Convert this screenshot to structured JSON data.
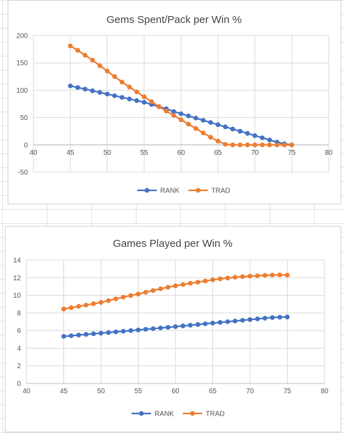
{
  "chart_data": [
    {
      "type": "line",
      "title": "Gems Spent/Pack per Win %",
      "xlabel": "",
      "ylabel": "",
      "xlim": [
        40,
        80
      ],
      "ylim": [
        -50,
        200
      ],
      "x_ticks": [
        "40",
        "45",
        "50",
        "55",
        "60",
        "65",
        "70",
        "75",
        "80"
      ],
      "y_ticks": [
        "200",
        "150",
        "100",
        "50",
        "0",
        "-50"
      ],
      "grid": true,
      "legend_position": "bottom",
      "x": [
        45,
        46,
        47,
        48,
        49,
        50,
        51,
        52,
        53,
        54,
        55,
        56,
        57,
        58,
        59,
        60,
        61,
        62,
        63,
        64,
        65,
        66,
        67,
        68,
        69,
        70,
        71,
        72,
        73,
        74,
        75
      ],
      "series": [
        {
          "name": "RANK",
          "color": "#4472c4",
          "values": [
            108,
            105,
            102,
            99,
            96,
            93,
            90,
            87,
            84,
            81,
            78,
            74,
            70,
            66,
            61,
            57,
            53,
            49,
            45,
            41,
            37,
            33,
            29,
            25,
            21,
            17,
            13,
            9,
            5,
            2,
            0
          ]
        },
        {
          "name": "TRAD",
          "color": "#ed7d31",
          "values": [
            181,
            173,
            164,
            155,
            145,
            135,
            125,
            115,
            106,
            97,
            88,
            79,
            70,
            62,
            54,
            46,
            38,
            30,
            22,
            14,
            7,
            1,
            0,
            0,
            0,
            0,
            0,
            0,
            0,
            0,
            0
          ]
        }
      ]
    },
    {
      "type": "line",
      "title": "Games Played per Win %",
      "xlabel": "",
      "ylabel": "",
      "xlim": [
        40,
        80
      ],
      "ylim": [
        0,
        14
      ],
      "x_ticks": [
        "40",
        "45",
        "50",
        "55",
        "60",
        "65",
        "70",
        "75",
        "80"
      ],
      "y_ticks": [
        "14",
        "12",
        "10",
        "8",
        "6",
        "4",
        "2",
        "0"
      ],
      "grid": true,
      "legend_position": "bottom",
      "x": [
        45,
        46,
        47,
        48,
        49,
        50,
        51,
        52,
        53,
        54,
        55,
        56,
        57,
        58,
        59,
        60,
        61,
        62,
        63,
        64,
        65,
        66,
        67,
        68,
        69,
        70,
        71,
        72,
        73,
        74,
        75
      ],
      "series": [
        {
          "name": "RANK",
          "color": "#4472c4",
          "values": [
            5.35,
            5.42,
            5.5,
            5.57,
            5.64,
            5.71,
            5.78,
            5.86,
            5.93,
            6.0,
            6.07,
            6.15,
            6.22,
            6.3,
            6.37,
            6.45,
            6.53,
            6.61,
            6.69,
            6.77,
            6.85,
            6.93,
            7.01,
            7.09,
            7.17,
            7.25,
            7.33,
            7.41,
            7.48,
            7.52,
            7.55
          ]
        },
        {
          "name": "TRAD",
          "color": "#ed7d31",
          "values": [
            8.45,
            8.6,
            8.75,
            8.9,
            9.05,
            9.2,
            9.4,
            9.6,
            9.8,
            9.98,
            10.15,
            10.35,
            10.55,
            10.75,
            10.92,
            11.08,
            11.23,
            11.37,
            11.5,
            11.63,
            11.76,
            11.87,
            11.96,
            12.05,
            12.12,
            12.18,
            12.22,
            12.27,
            12.3,
            12.32,
            12.3
          ]
        }
      ]
    }
  ]
}
